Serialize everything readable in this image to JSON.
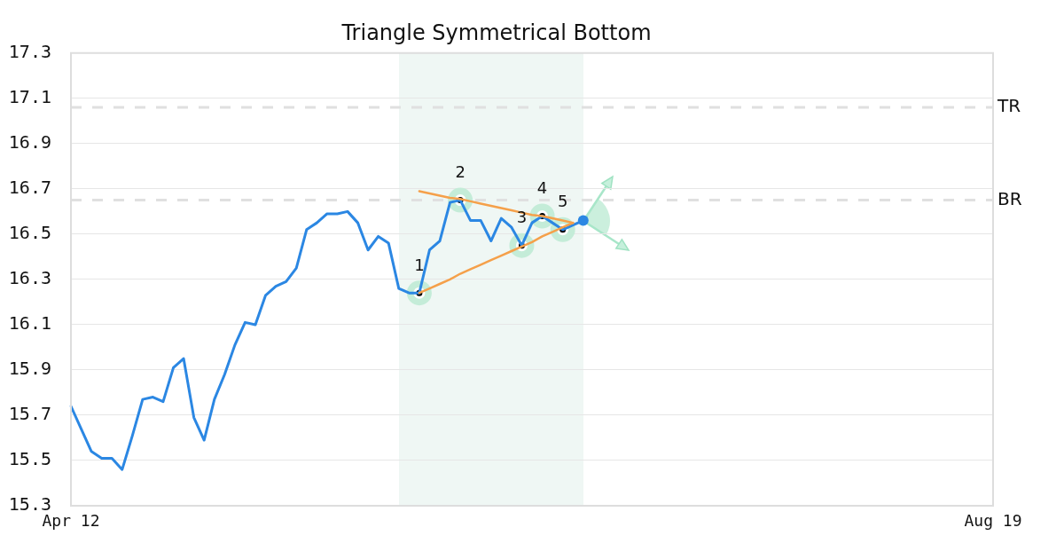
{
  "chart_data": {
    "type": "line",
    "title": "Triangle Symmetrical Bottom",
    "categories": [
      "Apr 12",
      null,
      null,
      null,
      null,
      null,
      null,
      null,
      null,
      null,
      null,
      null,
      null,
      null,
      null,
      null,
      null,
      null,
      null,
      null,
      null,
      null,
      null,
      null,
      null,
      null,
      null,
      null,
      null,
      null,
      null,
      null,
      null,
      null,
      null,
      null,
      null,
      null,
      null,
      null,
      null,
      null,
      null,
      null,
      null,
      null,
      null,
      null,
      null,
      null,
      null,
      null,
      null,
      null,
      null,
      null,
      null,
      null,
      null,
      null,
      null,
      null,
      null,
      null,
      null,
      null,
      null,
      null,
      null,
      null,
      null,
      null,
      null,
      null,
      null,
      null,
      null,
      null,
      null,
      null,
      null,
      null,
      null,
      null,
      null,
      null,
      null,
      null,
      null,
      null,
      "Aug 19"
    ],
    "ylim": [
      15.3,
      17.3
    ],
    "yticks": [
      15.3,
      15.5,
      15.7,
      15.9,
      16.1,
      16.3,
      16.5,
      16.7,
      16.9,
      17.1,
      17.3
    ],
    "grid": "y",
    "ref_lines": [
      {
        "axis": "y",
        "value": 17.06,
        "label": "TR",
        "color": "#e0e0e0",
        "line_style": "dashed"
      },
      {
        "axis": "y",
        "value": 16.65,
        "label": "BR",
        "color": "#e0e0e0",
        "line_style": "dashed"
      }
    ],
    "series": [
      {
        "type": "scatter",
        "color": "#c4ecd8",
        "marker": "circle",
        "values": [
          null,
          null,
          null,
          null,
          null,
          null,
          null,
          null,
          null,
          null,
          null,
          null,
          null,
          null,
          null,
          null,
          null,
          null,
          null,
          null,
          null,
          null,
          null,
          null,
          null,
          null,
          null,
          null,
          null,
          null,
          null,
          null,
          null,
          null,
          16.24,
          null,
          null,
          null,
          16.65,
          null,
          null,
          null,
          null,
          null,
          16.45,
          null,
          16.58,
          null,
          16.52,
          null,
          null,
          null,
          null,
          null,
          null,
          null,
          null,
          null,
          null,
          null,
          null,
          null,
          null,
          null,
          null,
          null,
          null,
          null,
          null,
          null,
          null,
          null,
          null,
          null,
          null,
          null,
          null,
          null,
          null,
          null,
          null,
          null,
          null,
          null,
          null,
          null,
          null,
          null,
          null,
          null,
          null
        ]
      },
      {
        "type": "scatter",
        "color": "#000000",
        "marker": "circle",
        "values": [
          null,
          null,
          null,
          null,
          null,
          null,
          null,
          null,
          null,
          null,
          null,
          null,
          null,
          null,
          null,
          null,
          null,
          null,
          null,
          null,
          null,
          null,
          null,
          null,
          null,
          null,
          null,
          null,
          null,
          null,
          null,
          null,
          null,
          null,
          16.24,
          null,
          null,
          null,
          16.65,
          null,
          null,
          null,
          null,
          null,
          16.45,
          null,
          16.58,
          null,
          16.52,
          null,
          null,
          null,
          null,
          null,
          null,
          null,
          null,
          null,
          null,
          null,
          null,
          null,
          null,
          null,
          null,
          null,
          null,
          null,
          null,
          null,
          null,
          null,
          null,
          null,
          null,
          null,
          null,
          null,
          null,
          null,
          null,
          null,
          null,
          null,
          null,
          null,
          null,
          null,
          null,
          null,
          null
        ]
      },
      {
        "color": "#2b87e3",
        "values": [
          15.74,
          15.64,
          15.54,
          15.51,
          15.51,
          15.46,
          15.61,
          15.77,
          15.78,
          15.76,
          15.91,
          15.95,
          15.69,
          15.59,
          15.77,
          15.88,
          16.01,
          16.11,
          16.1,
          16.23,
          16.27,
          16.29,
          16.35,
          16.52,
          16.55,
          16.59,
          16.59,
          16.6,
          16.55,
          16.43,
          16.49,
          16.46,
          16.26,
          16.24,
          16.24,
          16.43,
          16.47,
          16.64,
          16.65,
          16.56,
          16.56,
          16.47,
          16.57,
          16.53,
          16.45,
          16.55,
          16.58,
          16.55,
          16.52,
          16.54,
          16.56,
          null,
          null,
          null,
          null,
          null,
          null,
          null,
          null,
          null,
          null,
          null,
          null,
          null,
          null,
          null,
          null,
          null,
          null,
          null,
          null,
          null,
          null,
          null,
          null,
          null,
          null,
          null,
          null,
          null,
          null,
          null,
          null,
          null,
          null,
          null,
          null,
          null,
          null,
          null,
          null
        ]
      },
      {
        "color": "#f5a04a",
        "values": [
          null,
          null,
          null,
          null,
          null,
          null,
          null,
          null,
          null,
          null,
          null,
          null,
          null,
          null,
          null,
          null,
          null,
          null,
          null,
          null,
          null,
          null,
          null,
          null,
          null,
          null,
          null,
          null,
          null,
          null,
          null,
          null,
          null,
          null,
          16.69,
          16.68,
          16.67,
          16.66,
          16.655,
          16.645,
          16.635,
          16.625,
          16.615,
          16.605,
          16.595,
          16.585,
          16.58,
          16.57,
          16.56,
          16.55,
          null,
          null,
          null,
          null,
          null,
          null,
          null,
          null,
          null,
          null,
          null,
          null,
          null,
          null,
          null,
          null,
          null,
          null,
          null,
          null,
          null,
          null,
          null,
          null,
          null,
          null,
          null,
          null,
          null,
          null,
          null,
          null,
          null,
          null,
          null,
          null,
          null,
          null,
          null,
          null,
          null
        ]
      },
      {
        "color": "#f5a04a",
        "values": [
          null,
          null,
          null,
          null,
          null,
          null,
          null,
          null,
          null,
          null,
          null,
          null,
          null,
          null,
          null,
          null,
          null,
          null,
          null,
          null,
          null,
          null,
          null,
          null,
          null,
          null,
          null,
          null,
          null,
          null,
          null,
          null,
          null,
          null,
          16.24,
          16.26,
          16.28,
          16.3,
          16.325,
          16.345,
          16.365,
          16.385,
          16.405,
          16.425,
          16.445,
          16.465,
          16.49,
          16.51,
          16.53,
          16.55,
          null,
          null,
          null,
          null,
          null,
          null,
          null,
          null,
          null,
          null,
          null,
          null,
          null,
          null,
          null,
          null,
          null,
          null,
          null,
          null,
          null,
          null,
          null,
          null,
          null,
          null,
          null,
          null,
          null,
          null,
          null,
          null,
          null,
          null,
          null,
          null,
          null,
          null,
          null,
          null,
          null
        ]
      },
      {
        "type": "scatter",
        "color": "#2b87e3",
        "marker": "circle",
        "values": [
          null,
          null,
          null,
          null,
          null,
          null,
          null,
          null,
          null,
          null,
          null,
          null,
          null,
          null,
          null,
          null,
          null,
          null,
          null,
          null,
          null,
          null,
          null,
          null,
          null,
          null,
          null,
          null,
          null,
          null,
          null,
          null,
          null,
          null,
          null,
          null,
          null,
          null,
          null,
          null,
          null,
          null,
          null,
          null,
          null,
          null,
          null,
          null,
          null,
          null,
          16.56,
          null,
          null,
          null,
          null,
          null,
          null,
          null,
          null,
          null,
          null,
          null,
          null,
          null,
          null,
          null,
          null,
          null,
          null,
          null,
          null,
          null,
          null,
          null,
          null,
          null,
          null,
          null,
          null,
          null,
          null,
          null,
          null,
          null,
          null,
          null,
          null,
          null,
          null,
          null,
          null
        ]
      }
    ],
    "annotations": [
      {
        "text": "1",
        "y": 16.24
      },
      {
        "text": "2",
        "y": 16.65
      },
      {
        "text": "3",
        "y": 16.45
      },
      {
        "text": "4",
        "y": 16.58
      },
      {
        "text": "5",
        "y": 16.52
      }
    ]
  }
}
